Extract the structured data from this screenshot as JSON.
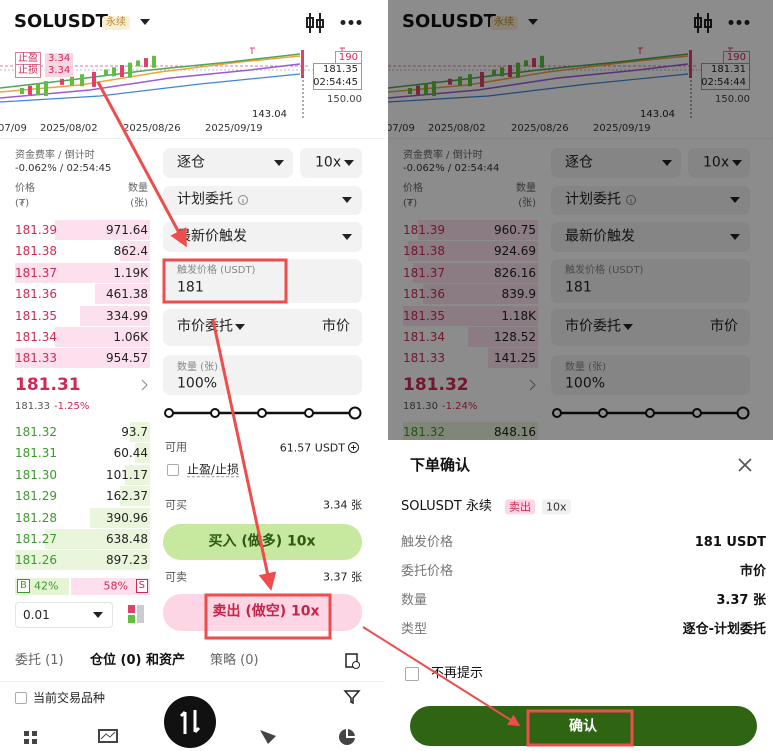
{
  "left": {
    "header": {
      "symbol": "SOLUSDT",
      "tag": "永续"
    },
    "chart": {
      "tp_label": "止盈",
      "tp_value": "3.34",
      "sl_label": "止损",
      "sl_value": "3.34",
      "high": "190",
      "price": "181.35",
      "countdown": "02:54:45",
      "level": "150.00",
      "low": "143.04",
      "dates": [
        "07/09",
        "2025/08/02",
        "2025/08/26",
        "2025/09/19"
      ]
    },
    "funding": {
      "label": "资金费率 / 倒计时",
      "value": "-0.062% / 02:54:45"
    },
    "book": {
      "price_label": "价格",
      "price_unit": "(₮)",
      "qty_label": "数量",
      "qty_unit": "(张)",
      "asks": [
        [
          "181.39",
          "971.64"
        ],
        [
          "181.38",
          "862.4"
        ],
        [
          "181.37",
          "1.19K"
        ],
        [
          "181.36",
          "461.38"
        ],
        [
          "181.35",
          "334.99"
        ],
        [
          "181.34",
          "1.06K"
        ],
        [
          "181.33",
          "954.57"
        ]
      ],
      "last": "181.31",
      "mark": "181.33",
      "change": "-1.25%",
      "bids": [
        [
          "181.32",
          "93.7"
        ],
        [
          "181.31",
          "60.44"
        ],
        [
          "181.30",
          "101.17"
        ],
        [
          "181.29",
          "162.37"
        ],
        [
          "181.28",
          "390.96"
        ],
        [
          "181.27",
          "638.48"
        ],
        [
          "181.26",
          "897.23"
        ]
      ],
      "buy_tag": "B",
      "buy_ratio": "42%",
      "sell_ratio": "58%",
      "sell_tag": "S",
      "precision": "0.01"
    },
    "form": {
      "margin": "逐仓",
      "leverage": "10x",
      "order_type": "计划委托",
      "trigger_type": "最新价触发",
      "trigger_label": "触发价格 (USDT)",
      "trigger_value": "181",
      "exec_type": "市价委托",
      "exec_price": "市价",
      "qty_label": "数量 (张)",
      "qty_value": "100%",
      "avail_label": "可用",
      "avail_value": "61.57 USDT",
      "tpsl": "止盈/止损",
      "buy_label": "可买",
      "buy_max": "3.34 张",
      "buy_button": "买入 (做多) 10x",
      "sell_label": "可卖",
      "sell_max": "3.37 张",
      "sell_button": "卖出 (做空) 10x"
    },
    "tabs": {
      "orders": "委托 (1)",
      "positions": "仓位 (0) 和资产",
      "strategies": "策略 (0)",
      "filter": "当前交易品种"
    }
  },
  "right": {
    "header": {
      "symbol": "SOLUSDT",
      "tag": "永续"
    },
    "chart": {
      "high": "190",
      "price": "181.31",
      "countdown": "02:54:44",
      "level": "150.00",
      "low": "143.04",
      "dates": [
        "07/09",
        "2025/08/02",
        "2025/08/26",
        "2025/09/19"
      ]
    },
    "funding": {
      "label": "资金费率 / 倒计时",
      "value": "-0.062% / 02:54:44"
    },
    "book": {
      "price_label": "价格",
      "price_unit": "(₮)",
      "qty_label": "数量",
      "qty_unit": "(张)",
      "asks": [
        [
          "181.39",
          "960.75"
        ],
        [
          "181.38",
          "924.69"
        ],
        [
          "181.37",
          "826.16"
        ],
        [
          "181.36",
          "839.9"
        ],
        [
          "181.35",
          "1.18K"
        ],
        [
          "181.34",
          "128.52"
        ],
        [
          "181.33",
          "141.25"
        ]
      ],
      "last": "181.32",
      "mark": "181.30",
      "change": "-1.24%",
      "bids": [
        [
          "181.32",
          "848.16"
        ]
      ]
    },
    "form": {
      "margin": "逐仓",
      "leverage": "10x",
      "order_type": "计划委托",
      "trigger_type": "最新价触发",
      "trigger_label": "触发价格 (USDT)",
      "trigger_value": "181",
      "exec_type": "市价委托",
      "exec_price": "市价",
      "qty_label": "数量 (张)",
      "qty_value": "100%"
    }
  },
  "dialog": {
    "title": "下单确认",
    "symbol": "SOLUSDT 永续",
    "side": "卖出",
    "leverage": "10x",
    "rows": [
      [
        "触发价格",
        "181 USDT"
      ],
      [
        "委托价格",
        "市价"
      ],
      [
        "数量",
        "3.37 张"
      ],
      [
        "类型",
        "逐仓-计划委托"
      ]
    ],
    "dont_show": "不再提示",
    "confirm": "确认"
  }
}
